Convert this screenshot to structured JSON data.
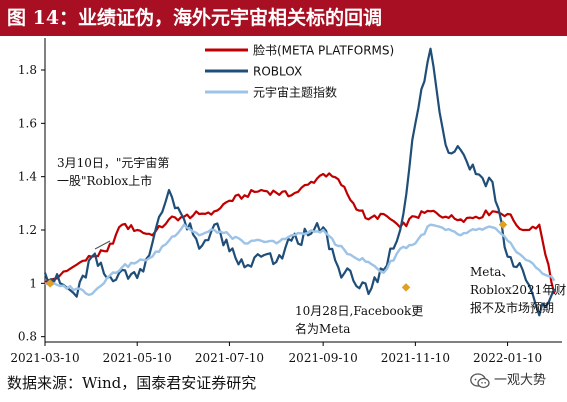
{
  "header": {
    "title": "图 14：业绩证伪，海外元宇宙相关标的回调"
  },
  "footer": {
    "source": "数据来源：Wind，国泰君安证券研究"
  },
  "watermark": {
    "text": "一观大势",
    "icon": "wechat-icon"
  },
  "colors": {
    "title_bar": "#a90f23",
    "meta": "#c00000",
    "roblox": "#1f4e79",
    "index": "#9dc3e6",
    "marker": "#e0a020"
  },
  "annotations": [
    {
      "id": "roblox-listing",
      "text_lines": [
        "3月10日，\"元宇宙第",
        "一股\"Roblox上市"
      ]
    },
    {
      "id": "facebook-rename",
      "text_lines": [
        "10月28日,Facebook更",
        "名为Meta"
      ]
    },
    {
      "id": "earnings",
      "text_lines": [
        "Meta、",
        "Roblox2021年财",
        "报不及市场预期"
      ]
    }
  ],
  "chart_data": {
    "type": "line",
    "title": "",
    "xlabel": "",
    "ylabel": "",
    "x_ticks": [
      "2021-03-10",
      "2021-05-10",
      "2021-07-10",
      "2021-09-10",
      "2021-11-10",
      "2022-01-10"
    ],
    "y_ticks": [
      "0.8",
      "1",
      "1.2",
      "1.4",
      "1.6",
      "1.8"
    ],
    "xlim": [
      "2021-03-10",
      "2022-02-15"
    ],
    "ylim": [
      0.78,
      1.92
    ],
    "grid": false,
    "legend": "top-center",
    "x": [
      "2021-03-10",
      "2021-03-20",
      "2021-03-31",
      "2021-04-10",
      "2021-04-20",
      "2021-04-30",
      "2021-05-10",
      "2021-05-20",
      "2021-05-31",
      "2021-06-10",
      "2021-06-20",
      "2021-06-30",
      "2021-07-10",
      "2021-07-20",
      "2021-07-31",
      "2021-08-10",
      "2021-08-20",
      "2021-08-31",
      "2021-09-10",
      "2021-09-20",
      "2021-09-30",
      "2021-10-10",
      "2021-10-20",
      "2021-10-31",
      "2021-11-10",
      "2021-11-20",
      "2021-11-30",
      "2021-12-10",
      "2021-12-20",
      "2021-12-31",
      "2022-01-10",
      "2022-01-20",
      "2022-01-31",
      "2022-02-10"
    ],
    "series": [
      {
        "name": "脸书(META PLATFORMS)",
        "color": "#c00000",
        "values": [
          1.0,
          1.03,
          1.07,
          1.1,
          1.12,
          1.22,
          1.2,
          1.18,
          1.24,
          1.25,
          1.26,
          1.27,
          1.31,
          1.33,
          1.35,
          1.34,
          1.33,
          1.37,
          1.41,
          1.39,
          1.3,
          1.24,
          1.26,
          1.21,
          1.25,
          1.27,
          1.25,
          1.24,
          1.25,
          1.27,
          1.26,
          1.2,
          1.22,
          0.96
        ]
      },
      {
        "name": "ROBLOX",
        "color": "#1f4e79",
        "values": [
          1.04,
          1.0,
          0.95,
          1.1,
          1.02,
          1.05,
          1.02,
          1.15,
          1.35,
          1.24,
          1.13,
          1.22,
          1.12,
          1.06,
          1.1,
          1.08,
          1.16,
          1.18,
          1.21,
          1.06,
          1.01,
          0.96,
          1.05,
          1.2,
          1.6,
          1.88,
          1.52,
          1.5,
          1.41,
          1.38,
          1.1,
          1.05,
          0.88,
          0.98
        ]
      },
      {
        "name": "元宇宙主题指数",
        "color": "#9dc3e6",
        "values": [
          1.0,
          0.99,
          0.98,
          0.96,
          1.02,
          1.06,
          1.08,
          1.1,
          1.16,
          1.22,
          1.18,
          1.2,
          1.18,
          1.15,
          1.16,
          1.15,
          1.18,
          1.19,
          1.2,
          1.14,
          1.1,
          1.08,
          1.04,
          1.13,
          1.15,
          1.22,
          1.2,
          1.18,
          1.2,
          1.21,
          1.16,
          1.1,
          1.05,
          1.01
        ]
      }
    ]
  }
}
